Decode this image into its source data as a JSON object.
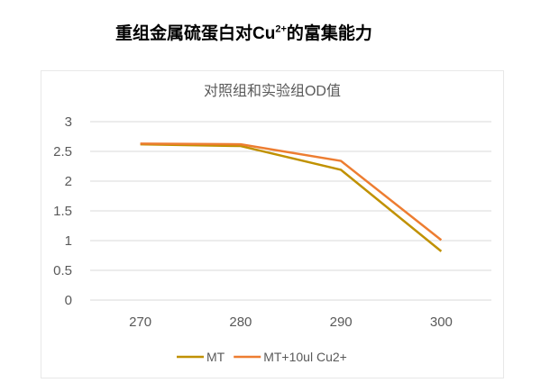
{
  "heading": {
    "prefix": "重组金属硫蛋白对Cu",
    "sup": "2+",
    "suffix": "的富集能力"
  },
  "chart_data": {
    "type": "line",
    "title": "对照组和实验组OD值",
    "categories": [
      "270",
      "280",
      "290",
      "300"
    ],
    "ylim": [
      0,
      3
    ],
    "yticks": [
      "0",
      "0.5",
      "1",
      "1.5",
      "2",
      "2.5",
      "3"
    ],
    "grid": true,
    "legend_position": "bottom",
    "series": [
      {
        "name": "MT",
        "color": "#c09100",
        "values": [
          2.62,
          2.59,
          2.19,
          0.82
        ]
      },
      {
        "name": "MT+10ul Cu2+",
        "color": "#ed7d31",
        "values": [
          2.63,
          2.62,
          2.34,
          1.01
        ]
      }
    ]
  }
}
